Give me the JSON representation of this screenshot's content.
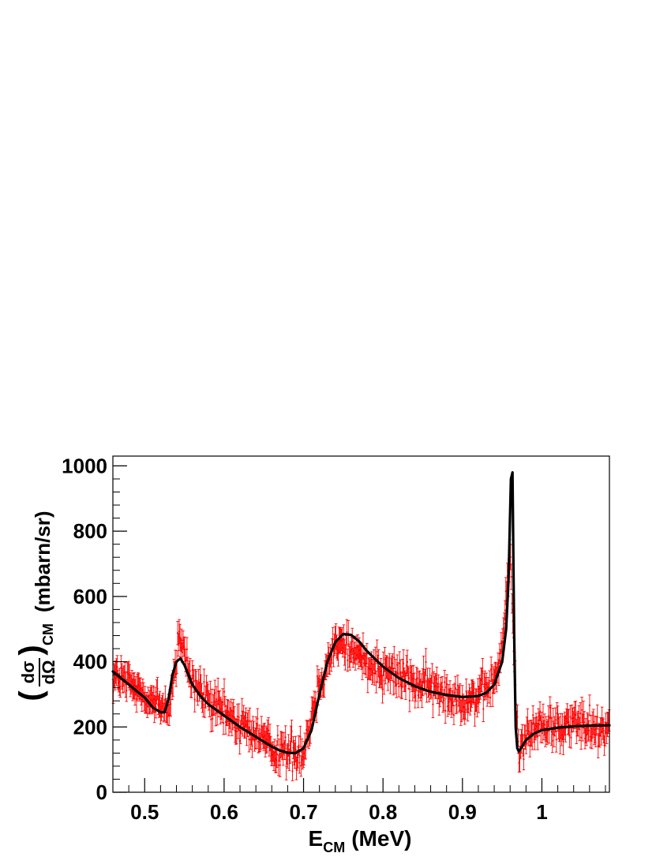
{
  "chart_data": {
    "type": "scatter",
    "title": "",
    "xlabel": {
      "main": "E",
      "sub": "CM",
      "unit": "(MeV)"
    },
    "ylabel": {
      "numerator": "dσ",
      "denominator": "dΩ",
      "sub": "CM",
      "unit": "(mbarn/sr)"
    },
    "xlim": [
      0.46,
      1.085
    ],
    "ylim": [
      0,
      1030
    ],
    "x_ticks": [
      0.5,
      0.6,
      0.7,
      0.8,
      0.9,
      1.0
    ],
    "x_tick_labels": [
      "0.5",
      "0.6",
      "0.7",
      "0.8",
      "0.9",
      "1"
    ],
    "y_ticks": [
      0,
      200,
      400,
      600,
      800,
      1000
    ],
    "y_tick_labels": [
      "0",
      "200",
      "400",
      "600",
      "800",
      "1000"
    ],
    "grid": false,
    "series": [
      {
        "kind": "data_with_errorbars",
        "color": "#ff0000",
        "n_points": 640,
        "approx_error": 35,
        "trend_x": [
          0.46,
          0.48,
          0.5,
          0.52,
          0.53,
          0.545,
          0.56,
          0.58,
          0.6,
          0.62,
          0.64,
          0.66,
          0.68,
          0.7,
          0.72,
          0.74,
          0.76,
          0.78,
          0.8,
          0.82,
          0.84,
          0.86,
          0.88,
          0.9,
          0.92,
          0.94,
          0.95,
          0.96,
          0.965,
          0.97,
          0.98,
          1.0,
          1.02,
          1.04,
          1.06,
          1.085
        ],
        "trend_y": [
          360,
          330,
          300,
          260,
          260,
          470,
          330,
          280,
          240,
          210,
          180,
          140,
          120,
          130,
          330,
          460,
          440,
          400,
          380,
          360,
          340,
          320,
          300,
          290,
          290,
          340,
          430,
          750,
          420,
          130,
          180,
          200,
          205,
          210,
          205,
          200
        ]
      },
      {
        "kind": "fit_curve",
        "color": "#000000",
        "x": [
          0.46,
          0.48,
          0.5,
          0.51,
          0.52,
          0.525,
          0.53,
          0.535,
          0.54,
          0.545,
          0.55,
          0.56,
          0.57,
          0.58,
          0.6,
          0.62,
          0.64,
          0.66,
          0.67,
          0.68,
          0.69,
          0.7,
          0.71,
          0.72,
          0.73,
          0.74,
          0.75,
          0.76,
          0.77,
          0.78,
          0.8,
          0.82,
          0.84,
          0.86,
          0.88,
          0.9,
          0.92,
          0.93,
          0.94,
          0.95,
          0.955,
          0.958,
          0.961,
          0.963,
          0.965,
          0.967,
          0.969,
          0.971,
          0.975,
          0.98,
          0.99,
          1.0,
          1.02,
          1.04,
          1.06,
          1.085
        ],
        "y": [
          370,
          330,
          290,
          260,
          245,
          245,
          285,
          360,
          400,
          410,
          390,
          330,
          295,
          270,
          235,
          200,
          170,
          140,
          128,
          121,
          120,
          135,
          190,
          300,
          400,
          460,
          485,
          482,
          462,
          432,
          385,
          350,
          325,
          308,
          298,
          292,
          295,
          305,
          330,
          400,
          500,
          650,
          960,
          980,
          500,
          200,
          135,
          125,
          140,
          160,
          180,
          190,
          198,
          202,
          204,
          205
        ]
      }
    ]
  }
}
